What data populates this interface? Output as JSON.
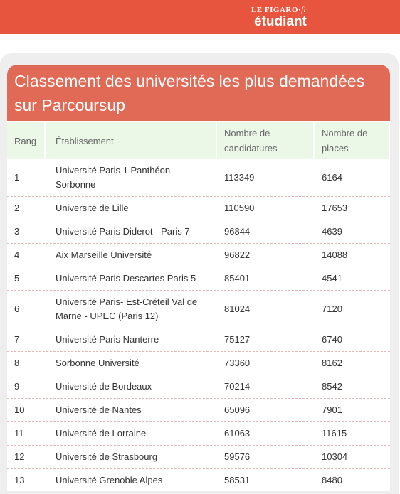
{
  "header": {
    "logo_top": "LE FIGARO",
    "logo_suffix": "fr",
    "logo_main": "étudiant"
  },
  "card": {
    "title": "Classement des universités les plus demandées sur Parcoursup"
  },
  "table": {
    "columns": [
      "Rang",
      "Établissement",
      "Nombre de candidatures",
      "Nombre de places"
    ],
    "rows": [
      [
        1,
        "Université Paris 1 Panthéon Sorbonne",
        113349,
        6164
      ],
      [
        2,
        "Université de Lille",
        110590,
        17653
      ],
      [
        3,
        "Université Paris Diderot - Paris 7",
        96844,
        4639
      ],
      [
        4,
        "Aix Marseille Université",
        96822,
        14088
      ],
      [
        5,
        "Université Paris Descartes Paris 5",
        85401,
        4541
      ],
      [
        6,
        "Université Paris- Est-Créteil Val de Marne - UPEC (Paris 12)",
        81024,
        7120
      ],
      [
        7,
        "Université Paris Nanterre",
        75127,
        6740
      ],
      [
        8,
        "Sorbonne Université",
        73360,
        8162
      ],
      [
        9,
        "Université de Bordeaux",
        70214,
        8542
      ],
      [
        10,
        "Université de Nantes",
        65096,
        7901
      ],
      [
        11,
        "Université de Lorraine",
        61063,
        11615
      ],
      [
        12,
        "Université de Strasbourg",
        59576,
        10304
      ],
      [
        13,
        "Université Grenoble Alpes",
        58531,
        8480
      ]
    ]
  }
}
